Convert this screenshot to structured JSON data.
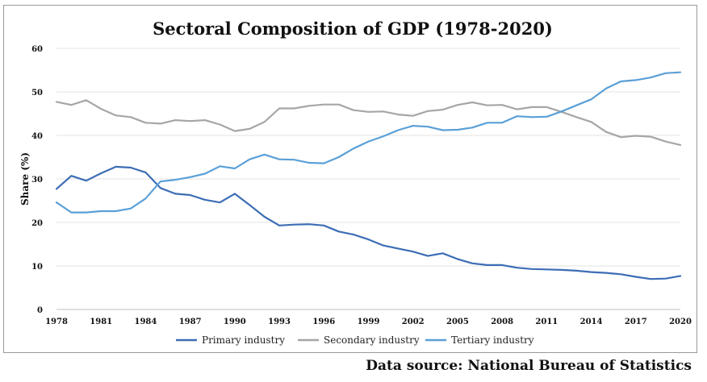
{
  "chart_data": {
    "type": "line",
    "title": "Sectoral Composition of GDP (1978-2020)",
    "ylabel": "Share (%)",
    "xlabel": "",
    "ylim": [
      0,
      60
    ],
    "yticks": [
      0,
      10,
      20,
      30,
      40,
      50,
      60
    ],
    "xlim": [
      1978,
      2020
    ],
    "xticks": [
      1978,
      1981,
      1984,
      1987,
      1990,
      1993,
      1996,
      1999,
      2002,
      2005,
      2008,
      2011,
      2014,
      2017,
      2020
    ],
    "grid": true,
    "legend_position": "bottom",
    "x": [
      1978,
      1979,
      1980,
      1981,
      1982,
      1983,
      1984,
      1985,
      1986,
      1987,
      1988,
      1989,
      1990,
      1991,
      1992,
      1993,
      1994,
      1995,
      1996,
      1997,
      1998,
      1999,
      2000,
      2001,
      2002,
      2003,
      2004,
      2005,
      2006,
      2007,
      2008,
      2009,
      2010,
      2011,
      2012,
      2013,
      2014,
      2015,
      2016,
      2017,
      2018,
      2019,
      2020
    ],
    "series": [
      {
        "name": "Primary industry",
        "color": "#3c6db5",
        "values": [
          27.7,
          30.7,
          29.6,
          31.3,
          32.8,
          32.6,
          31.5,
          27.9,
          26.6,
          26.3,
          25.2,
          24.6,
          26.6,
          24.0,
          21.3,
          19.3,
          19.5,
          19.6,
          19.3,
          17.9,
          17.2,
          16.1,
          14.7,
          14.0,
          13.3,
          12.3,
          12.9,
          11.6,
          10.6,
          10.2,
          10.2,
          9.6,
          9.3,
          9.2,
          9.1,
          8.9,
          8.6,
          8.4,
          8.1,
          7.5,
          7.0,
          7.1,
          7.7
        ]
      },
      {
        "name": "Secondary industry",
        "color": "#a6a6a6",
        "values": [
          47.7,
          47.0,
          48.1,
          46.1,
          44.6,
          44.2,
          42.9,
          42.7,
          43.5,
          43.3,
          43.5,
          42.5,
          41.0,
          41.5,
          43.1,
          46.2,
          46.2,
          46.8,
          47.1,
          47.1,
          45.8,
          45.4,
          45.5,
          44.8,
          44.5,
          45.6,
          45.9,
          47.0,
          47.6,
          46.9,
          47.0,
          46.0,
          46.5,
          46.5,
          45.4,
          44.2,
          43.1,
          40.8,
          39.6,
          39.9,
          39.7,
          38.6,
          37.8
        ]
      },
      {
        "name": "Tertiary industry",
        "color": "#5aa0d8",
        "values": [
          24.6,
          22.3,
          22.3,
          22.6,
          22.6,
          23.2,
          25.5,
          29.4,
          29.8,
          30.4,
          31.2,
          32.9,
          32.4,
          34.5,
          35.6,
          34.5,
          34.4,
          33.7,
          33.6,
          35.0,
          37.0,
          38.6,
          39.8,
          41.2,
          42.2,
          42.0,
          41.2,
          41.3,
          41.8,
          42.9,
          42.9,
          44.4,
          44.2,
          44.3,
          45.5,
          46.9,
          48.3,
          50.8,
          52.4,
          52.7,
          53.3,
          54.3,
          54.5
        ]
      }
    ]
  },
  "footer": {
    "source": "Data source: National Bureau of Statistics"
  }
}
